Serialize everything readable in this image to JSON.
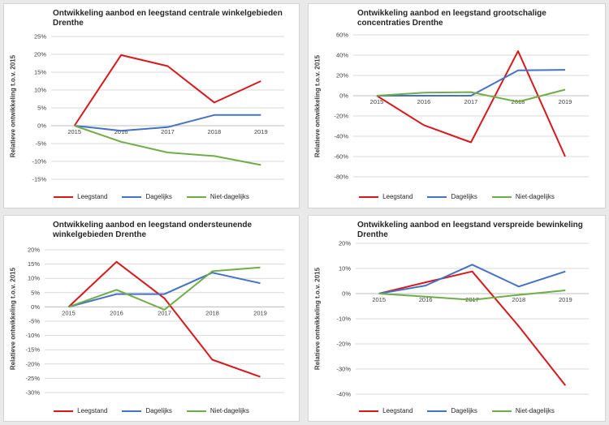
{
  "chart_data": [
    {
      "type": "line",
      "title": "Ontwikkeling aanbod en leegstand centrale winkelgebieden Drenthe",
      "ylabel": "Relatieve ontwikkeling t.o.v. 2015",
      "y_format": "percent",
      "categories": [
        "2015",
        "2016",
        "2017",
        "2018",
        "2019"
      ],
      "ylim": [
        -15,
        25
      ],
      "yticks": [
        25,
        20,
        15,
        10,
        5,
        0,
        -5,
        -10,
        -15
      ],
      "series": [
        {
          "name": "Leegstand",
          "color": "#d7191c",
          "values": [
            0,
            19.8,
            16.7,
            6.5,
            12.5
          ]
        },
        {
          "name": "Dagelijks",
          "color": "#4472c4",
          "values": [
            0,
            -1.4,
            -0.4,
            3.0,
            3.0
          ]
        },
        {
          "name": "Niet-dagelijks",
          "color": "#70ad47",
          "values": [
            0,
            -4.5,
            -7.5,
            -8.5,
            -11.0
          ]
        }
      ],
      "grid": true,
      "legend_position": "bottom"
    },
    {
      "type": "line",
      "title": "Ontwikkeling aanbod en leegstand grootschalige concentraties Drenthe",
      "ylabel": "Relatieve ontwikkeling t.o.v. 2015",
      "y_format": "percent",
      "categories": [
        "2015",
        "2016",
        "2017",
        "2018",
        "2019"
      ],
      "ylim": [
        -80,
        60
      ],
      "yticks": [
        60,
        40,
        20,
        0,
        -20,
        -40,
        -60,
        -80
      ],
      "series": [
        {
          "name": "Leegstand",
          "color": "#d7191c",
          "values": [
            0,
            -29,
            -46,
            44,
            -60
          ]
        },
        {
          "name": "Dagelijks",
          "color": "#4472c4",
          "values": [
            0,
            0,
            0,
            25,
            25.5
          ]
        },
        {
          "name": "Niet-dagelijks",
          "color": "#70ad47",
          "values": [
            0,
            3,
            3.5,
            -6,
            6
          ]
        }
      ],
      "grid": true,
      "legend_position": "bottom"
    },
    {
      "type": "line",
      "title": "Ontwikkeling aanbod en leegstand ondersteunende winkelgebieden  Drenthe",
      "ylabel": "Relatieve ontwikkeling t.o.v. 2015",
      "y_format": "percent",
      "categories": [
        "2015",
        "2016",
        "2017",
        "2018",
        "2019"
      ],
      "ylim": [
        -30,
        20
      ],
      "yticks": [
        20,
        15,
        10,
        5,
        0,
        -5,
        -10,
        -15,
        -20,
        -25,
        -30
      ],
      "series": [
        {
          "name": "Leegstand",
          "color": "#d7191c",
          "values": [
            0,
            15.8,
            3.0,
            -18.5,
            -24.5
          ]
        },
        {
          "name": "Dagelijks",
          "color": "#4472c4",
          "values": [
            0,
            4.5,
            4.5,
            12.0,
            8.3
          ]
        },
        {
          "name": "Niet-dagelijks",
          "color": "#70ad47",
          "values": [
            0,
            6.0,
            -1.0,
            12.5,
            13.8
          ]
        }
      ],
      "grid": true,
      "legend_position": "bottom"
    },
    {
      "type": "line",
      "title": "Ontwikkeling aanbod en leegstand verspreide bewinkeling Drenthe",
      "ylabel": "Relatieve ontwikkeling t.o.v. 2015",
      "y_format": "percent",
      "categories": [
        "2015",
        "2016",
        "2017",
        "2018",
        "2019"
      ],
      "ylim": [
        -40,
        20
      ],
      "yticks": [
        20,
        10,
        0,
        -10,
        -20,
        -30,
        -40
      ],
      "series": [
        {
          "name": "Leegstand",
          "color": "#d7191c",
          "values": [
            0,
            4.5,
            8.8,
            -13,
            -36.5
          ]
        },
        {
          "name": "Dagelijks",
          "color": "#4472c4",
          "values": [
            0,
            3.2,
            11.5,
            2.8,
            8.8
          ]
        },
        {
          "name": "Niet-dagelijks",
          "color": "#70ad47",
          "values": [
            0,
            -1.2,
            -2.5,
            -0.5,
            1.3
          ]
        }
      ],
      "grid": true,
      "legend_position": "bottom"
    }
  ]
}
